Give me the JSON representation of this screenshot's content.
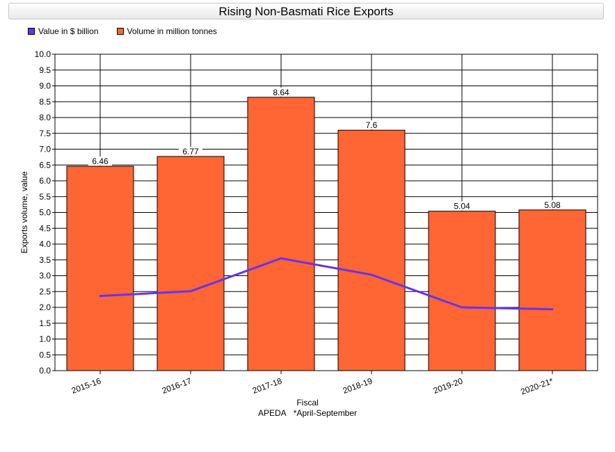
{
  "chart_data": {
    "type": "bar",
    "title": "Rising Non-Basmati Rice Exports",
    "ylabel": "Exports volume, value",
    "xlabel": "Fiscal",
    "footnote_source": "APEDA",
    "footnote_note": "*April-September",
    "categories": [
      "2015-16",
      "2016-17",
      "2017-18",
      "2018-19",
      "2019-20",
      "2020-21*"
    ],
    "ylim": [
      0,
      10
    ],
    "ystep": 0.5,
    "grid": true,
    "legend_position": "top-left",
    "series": [
      {
        "name": "Value in $ billion",
        "kind": "line",
        "color": "#6633ee",
        "values": [
          2.36,
          2.51,
          3.55,
          3.03,
          2.0,
          1.94
        ]
      },
      {
        "name": "Volume in million tonnes",
        "kind": "bar",
        "color": "#ff6633",
        "values": [
          6.46,
          6.77,
          8.64,
          7.6,
          5.04,
          5.08
        ],
        "labels": [
          "6.46",
          "6.77",
          "8.64",
          "7.6",
          "5.04",
          "5.08"
        ]
      }
    ]
  }
}
